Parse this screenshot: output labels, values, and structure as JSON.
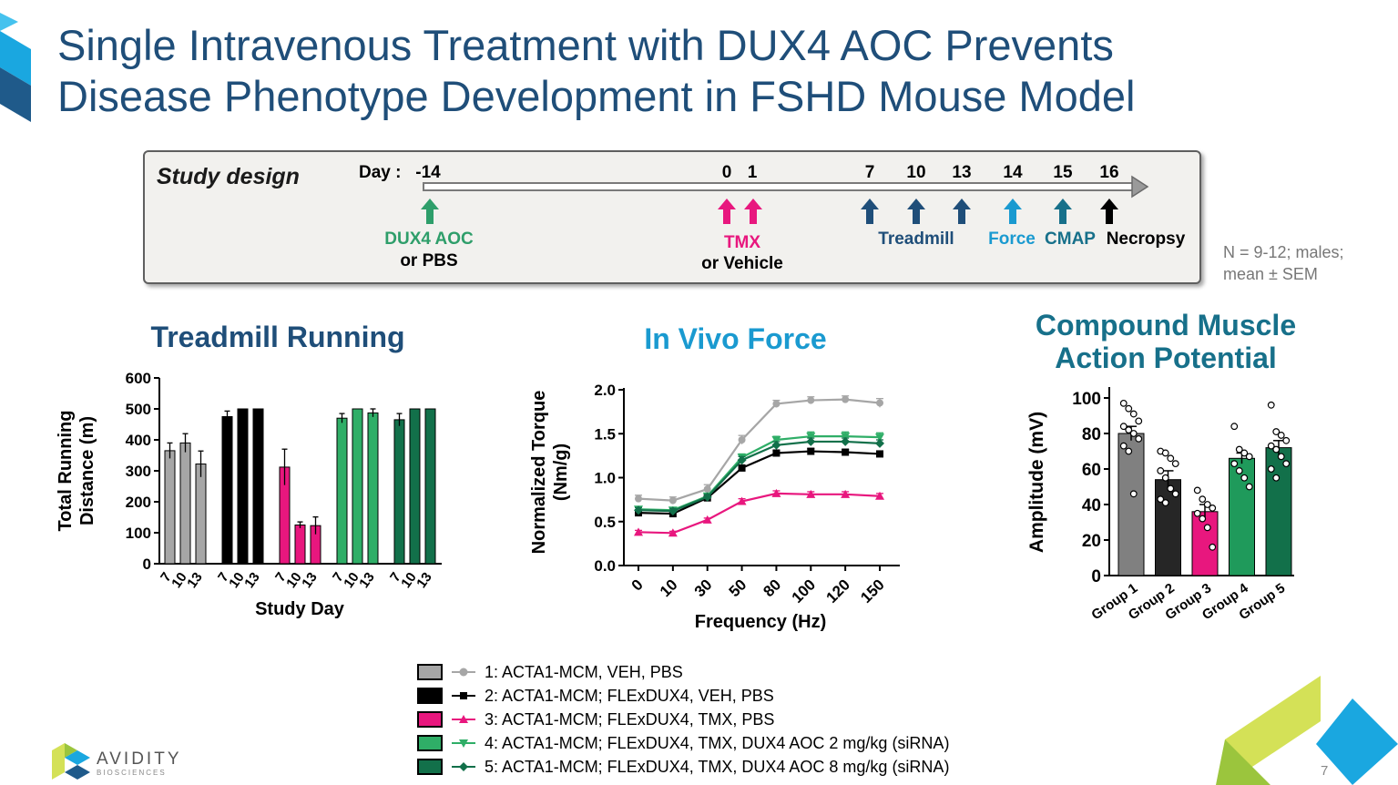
{
  "slide": {
    "title_line1": "Single Intravenous Treatment with DUX4 AOC Prevents",
    "title_line2": "Disease Phenotype Development in FSHD Mouse Model",
    "page_number": "7",
    "note_line1": "N = 9-12; males;",
    "note_line2": "mean ± SEM",
    "logo_name": "AVIDITY",
    "logo_sub": "BIOSCIENCES"
  },
  "study_design": {
    "title": "Study design",
    "day_label": "Day :",
    "days": [
      "-14",
      "0",
      "1",
      "7",
      "10",
      "13",
      "14",
      "15",
      "16"
    ],
    "events": [
      {
        "label1": "DUX4 AOC",
        "label2": "or PBS"
      },
      {
        "label1": "TMX",
        "label2": "or Vehicle"
      },
      {
        "label1": "Treadmill"
      },
      {
        "label1": "Force"
      },
      {
        "label1": "CMAP"
      },
      {
        "label1": "Necropsy"
      }
    ],
    "colors": {
      "aoc": "#2e9e6a",
      "tmx": "#e8177e",
      "treadmill": "#1f4e79",
      "force": "#1a9ad0",
      "cmap": "#17708a",
      "necropsy": "#000000"
    }
  },
  "legend": [
    {
      "label": "1: ACTA1-MCM, VEH, PBS",
      "color": "#a6a6a6",
      "marker": "circle"
    },
    {
      "label": "2: ACTA1-MCM; FLExDUX4, VEH, PBS",
      "color": "#000000",
      "marker": "square"
    },
    {
      "label": "3: ACTA1-MCM; FLExDUX4, TMX, PBS",
      "color": "#e8177e",
      "marker": "triangle-up"
    },
    {
      "label": "4: ACTA1-MCM; FLExDUX4, TMX, DUX4 AOC 2 mg/kg (siRNA)",
      "color": "#2fae67",
      "marker": "triangle-down"
    },
    {
      "label": "5: ACTA1-MCM; FLExDUX4, TMX, DUX4 AOC 8 mg/kg (siRNA)",
      "color": "#12704a",
      "marker": "diamond"
    }
  ],
  "chart_data": [
    {
      "type": "bar",
      "title": "Treadmill Running",
      "title_color": "#1f4e79",
      "xlabel": "Study Day",
      "ylabel": "Total Running Distance (m)",
      "ylabel_line1": "Total Running",
      "ylabel_line2": "Distance (m)",
      "ylim": [
        0,
        600
      ],
      "yticks": [
        "0",
        "100",
        "200",
        "300",
        "400",
        "500",
        "600"
      ],
      "categories": [
        "7",
        "10",
        "13"
      ],
      "series": [
        {
          "name": "1",
          "color": "#a6a6a6",
          "values": [
            365,
            390,
            322
          ],
          "errors": [
            25,
            30,
            42
          ]
        },
        {
          "name": "2",
          "color": "#000000",
          "values": [
            475,
            500,
            500
          ],
          "errors": [
            18,
            0,
            0
          ]
        },
        {
          "name": "3",
          "color": "#e8177e",
          "values": [
            312,
            125,
            123
          ],
          "errors": [
            58,
            10,
            28
          ]
        },
        {
          "name": "4",
          "color": "#2fae67",
          "values": [
            470,
            500,
            487
          ],
          "errors": [
            15,
            0,
            13
          ]
        },
        {
          "name": "5",
          "color": "#12704a",
          "values": [
            465,
            500,
            500
          ],
          "errors": [
            20,
            0,
            0
          ]
        }
      ]
    },
    {
      "type": "line",
      "title": "In Vivo Force",
      "title_color": "#1a9ad0",
      "xlabel": "Frequency (Hz)",
      "ylabel": "Normalized Torque (Nm/g)",
      "ylabel_line1": "Normalized Torque",
      "ylabel_line2": "(Nm/g)",
      "ylim": [
        0,
        2.0
      ],
      "yticks": [
        "0.0",
        "0.5",
        "1.0",
        "1.5",
        "2.0"
      ],
      "x": [
        "0",
        "10",
        "30",
        "50",
        "80",
        "100",
        "120",
        "150"
      ],
      "series": [
        {
          "name": "1",
          "color": "#a6a6a6",
          "marker": "circle",
          "values": [
            0.76,
            0.74,
            0.87,
            1.43,
            1.84,
            1.88,
            1.89,
            1.85
          ],
          "errors": [
            0.04,
            0.04,
            0.05,
            0.05,
            0.04,
            0.04,
            0.04,
            0.05
          ]
        },
        {
          "name": "2",
          "color": "#000000",
          "marker": "square",
          "values": [
            0.6,
            0.59,
            0.77,
            1.11,
            1.28,
            1.3,
            1.29,
            1.27
          ],
          "errors": [
            0.02,
            0.02,
            0.02,
            0.03,
            0.03,
            0.03,
            0.03,
            0.03
          ]
        },
        {
          "name": "3",
          "color": "#e8177e",
          "marker": "triangle-up",
          "values": [
            0.38,
            0.37,
            0.52,
            0.73,
            0.82,
            0.81,
            0.81,
            0.79
          ],
          "errors": [
            0.02,
            0.02,
            0.02,
            0.03,
            0.03,
            0.03,
            0.03,
            0.03
          ]
        },
        {
          "name": "4",
          "color": "#2fae67",
          "marker": "triangle-down",
          "values": [
            0.64,
            0.63,
            0.79,
            1.23,
            1.43,
            1.47,
            1.47,
            1.46
          ],
          "errors": [
            0.03,
            0.03,
            0.03,
            0.04,
            0.04,
            0.05,
            0.05,
            0.05
          ]
        },
        {
          "name": "5",
          "color": "#12704a",
          "marker": "diamond",
          "values": [
            0.63,
            0.62,
            0.78,
            1.2,
            1.37,
            1.41,
            1.41,
            1.39
          ],
          "errors": [
            0.03,
            0.03,
            0.03,
            0.04,
            0.04,
            0.04,
            0.04,
            0.04
          ]
        }
      ]
    },
    {
      "type": "bar",
      "title": "Compound Muscle Action Potential",
      "title_line1": "Compound Muscle",
      "title_line2": "Action Potential",
      "title_color": "#17708a",
      "ylabel": "Amplitude (mV)",
      "ylim": [
        0,
        100
      ],
      "yticks": [
        "0",
        "20",
        "40",
        "60",
        "80",
        "100"
      ],
      "categories": [
        "Group 1",
        "Group 2",
        "Group 3",
        "Group 4",
        "Group 5"
      ],
      "colors": [
        "#808080",
        "#262626",
        "#e8177e",
        "#1f9a5b",
        "#12704a"
      ],
      "values": [
        80,
        54,
        36,
        66,
        72
      ],
      "errors": [
        4,
        5,
        4,
        3,
        4
      ],
      "points": [
        [
          97,
          94,
          91,
          87,
          84,
          82,
          80,
          77,
          73,
          70,
          46
        ],
        [
          70,
          69,
          66,
          63,
          59,
          55,
          49,
          46,
          43,
          41
        ],
        [
          48,
          43,
          40,
          38,
          35,
          32,
          27,
          16
        ],
        [
          84,
          71,
          69,
          67,
          63,
          59,
          55,
          50
        ],
        [
          96,
          81,
          79,
          76,
          73,
          71,
          67,
          63,
          60,
          55
        ]
      ]
    }
  ]
}
